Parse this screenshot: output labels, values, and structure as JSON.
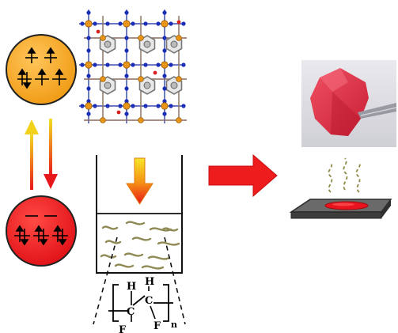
{
  "colors": {
    "high_spin": "#f5a623",
    "low_spin": "#e8151b",
    "arrow_red": "#ee1c1c",
    "arrow_yellow": "#f2d21a",
    "film": "#d93a4a",
    "fiber": "#8f8a55",
    "plate": "#5a5a5a",
    "vapor": "#8c8a45"
  },
  "icons": {
    "high_spin_state": "orange-circle-spin-icon",
    "low_spin_state": "red-circle-spin-icon",
    "framework": "mof-crystal-structure-icon",
    "beaker": "beaker-icon",
    "film_photo": "composite-film-photo",
    "heated_plate": "heated-plate-icon"
  },
  "polymer": {
    "atom_h1": "H",
    "atom_h2": "H",
    "atom_c1": "C",
    "atom_c2": "C",
    "atom_f1": "F",
    "atom_f2": "F",
    "subscript": "n"
  }
}
